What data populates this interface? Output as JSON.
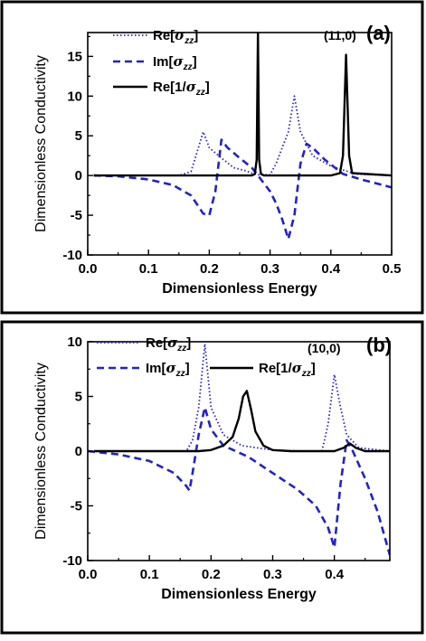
{
  "chart_data": [
    {
      "type": "line",
      "panel_label": "(a)",
      "annotation": "(11,0)",
      "xlabel": "Dimensionless Energy",
      "ylabel": "Dimensionless Conductivity",
      "xlim": [
        0.0,
        0.5
      ],
      "ylim": [
        -10,
        18
      ],
      "xticks": [
        0.0,
        0.1,
        0.2,
        0.3,
        0.4,
        0.5
      ],
      "xtick_labels": [
        "0.0",
        "0.1",
        "0.2",
        "0.3",
        "0.4",
        "0.5"
      ],
      "yticks": [
        -10,
        -5,
        0,
        5,
        10,
        15
      ],
      "ytick_labels": [
        "-10",
        "-5",
        "0",
        "5",
        "10",
        "15"
      ],
      "legend_placement": "top-left",
      "grid": false,
      "series": [
        {
          "name": "Re[σzz]",
          "name_parts": {
            "pre": "Re[",
            "sym": "σ",
            "sub": "zz",
            "post": "]"
          },
          "style": "dotted",
          "color": "#2222cc",
          "x": [
            0.01,
            0.15,
            0.17,
            0.18,
            0.19,
            0.2,
            0.22,
            0.24,
            0.26,
            0.27,
            0.28,
            0.3,
            0.31,
            0.32,
            0.33,
            0.34,
            0.35,
            0.37,
            0.4,
            0.42,
            0.44,
            0.5
          ],
          "y": [
            0,
            0,
            0.5,
            3.0,
            5.5,
            3.5,
            2.2,
            1.0,
            0.6,
            0.3,
            0.1,
            0.1,
            1.5,
            3.5,
            5.5,
            10.0,
            5.5,
            2.5,
            1.2,
            0.7,
            0.2,
            0
          ]
        },
        {
          "name": "Im[σzz]",
          "name_parts": {
            "pre": "Im[",
            "sym": "σ",
            "sub": "zz",
            "post": "]"
          },
          "style": "dashed",
          "color": "#2222cc",
          "x": [
            0.01,
            0.05,
            0.1,
            0.14,
            0.17,
            0.19,
            0.2,
            0.21,
            0.22,
            0.23,
            0.25,
            0.27,
            0.28,
            0.3,
            0.31,
            0.32,
            0.33,
            0.34,
            0.35,
            0.36,
            0.37,
            0.39,
            0.42,
            0.45,
            0.5
          ],
          "y": [
            0,
            -0.1,
            -0.5,
            -1.2,
            -2.5,
            -4.8,
            -5.0,
            -2.0,
            4.5,
            3.5,
            2.2,
            1.0,
            0,
            -2.0,
            -3.5,
            -5.5,
            -8.0,
            -5.0,
            1.5,
            4.0,
            3.5,
            2.0,
            0.2,
            -0.5,
            -1.5
          ]
        },
        {
          "name": "Re[1/σzz]",
          "name_parts": {
            "pre": "Re[1/",
            "sym": "σ",
            "sub": "zz",
            "post": "]"
          },
          "style": "solid",
          "color": "#000000",
          "x": [
            0.01,
            0.27,
            0.275,
            0.278,
            0.28,
            0.282,
            0.285,
            0.29,
            0.4,
            0.415,
            0.42,
            0.425,
            0.43,
            0.435,
            0.5
          ],
          "y": [
            0,
            0,
            0.2,
            2.0,
            18.0,
            2.0,
            0.2,
            0,
            0,
            0.3,
            2.5,
            15.2,
            2.5,
            0.3,
            0
          ]
        }
      ]
    },
    {
      "type": "line",
      "panel_label": "(b)",
      "annotation": "(10,0)",
      "xlabel": "Dimensionless Energy",
      "ylabel": "Dimensionless Conductivity",
      "xlim": [
        0.0,
        0.49
      ],
      "ylim": [
        -10,
        10
      ],
      "xticks": [
        0.0,
        0.1,
        0.2,
        0.3,
        0.4
      ],
      "xtick_labels": [
        "0.0",
        "0.1",
        "0.2",
        "0.3",
        "0.4"
      ],
      "yticks": [
        -10,
        -5,
        0,
        5,
        10
      ],
      "ytick_labels": [
        "-10",
        "-5",
        "0",
        "5",
        "10"
      ],
      "legend_placement": "top",
      "grid": false,
      "series": [
        {
          "name": "Re[σzz]",
          "name_parts": {
            "pre": "Re[",
            "sym": "σ",
            "sub": "zz",
            "post": "]"
          },
          "style": "dotted",
          "color": "#2222cc",
          "x": [
            0.01,
            0.16,
            0.17,
            0.18,
            0.19,
            0.2,
            0.22,
            0.25,
            0.3,
            0.35,
            0.38,
            0.39,
            0.4,
            0.41,
            0.42,
            0.44,
            0.49
          ],
          "y": [
            0,
            0,
            1.0,
            4.0,
            9.8,
            4.0,
            1.5,
            0.5,
            0.1,
            0,
            0,
            2.5,
            7.0,
            4.0,
            1.5,
            0.3,
            0
          ]
        },
        {
          "name": "Im[σzz]",
          "name_parts": {
            "pre": "Im[",
            "sym": "σ",
            "sub": "zz",
            "post": "]"
          },
          "style": "dashed",
          "color": "#2222cc",
          "x": [
            0.0,
            0.05,
            0.1,
            0.14,
            0.16,
            0.165,
            0.17,
            0.18,
            0.19,
            0.2,
            0.22,
            0.26,
            0.3,
            0.34,
            0.37,
            0.39,
            0.4,
            0.41,
            0.42,
            0.43,
            0.45,
            0.47,
            0.49
          ],
          "y": [
            0,
            -0.3,
            -0.9,
            -2.0,
            -3.2,
            -3.6,
            -2.0,
            1.5,
            4.0,
            2.0,
            0.5,
            -0.5,
            -2.0,
            -3.5,
            -5.0,
            -7.0,
            -8.8,
            -3.0,
            1.0,
            0,
            -2.5,
            -5.5,
            -9.5
          ]
        },
        {
          "name": "Re[1/σzz]",
          "name_parts": {
            "pre": "Re[1/",
            "sym": "σ",
            "sub": "zz",
            "post": "]"
          },
          "style": "solid",
          "color": "#000000",
          "x": [
            0.01,
            0.18,
            0.2,
            0.22,
            0.235,
            0.245,
            0.252,
            0.258,
            0.265,
            0.272,
            0.285,
            0.3,
            0.33,
            0.4,
            0.415,
            0.425,
            0.435,
            0.45,
            0.49
          ],
          "y": [
            0,
            0,
            0.1,
            0.5,
            1.3,
            3.0,
            5.0,
            5.5,
            3.8,
            1.8,
            0.5,
            0.1,
            0,
            0,
            0.3,
            0.7,
            0.3,
            0,
            0
          ]
        }
      ]
    }
  ]
}
